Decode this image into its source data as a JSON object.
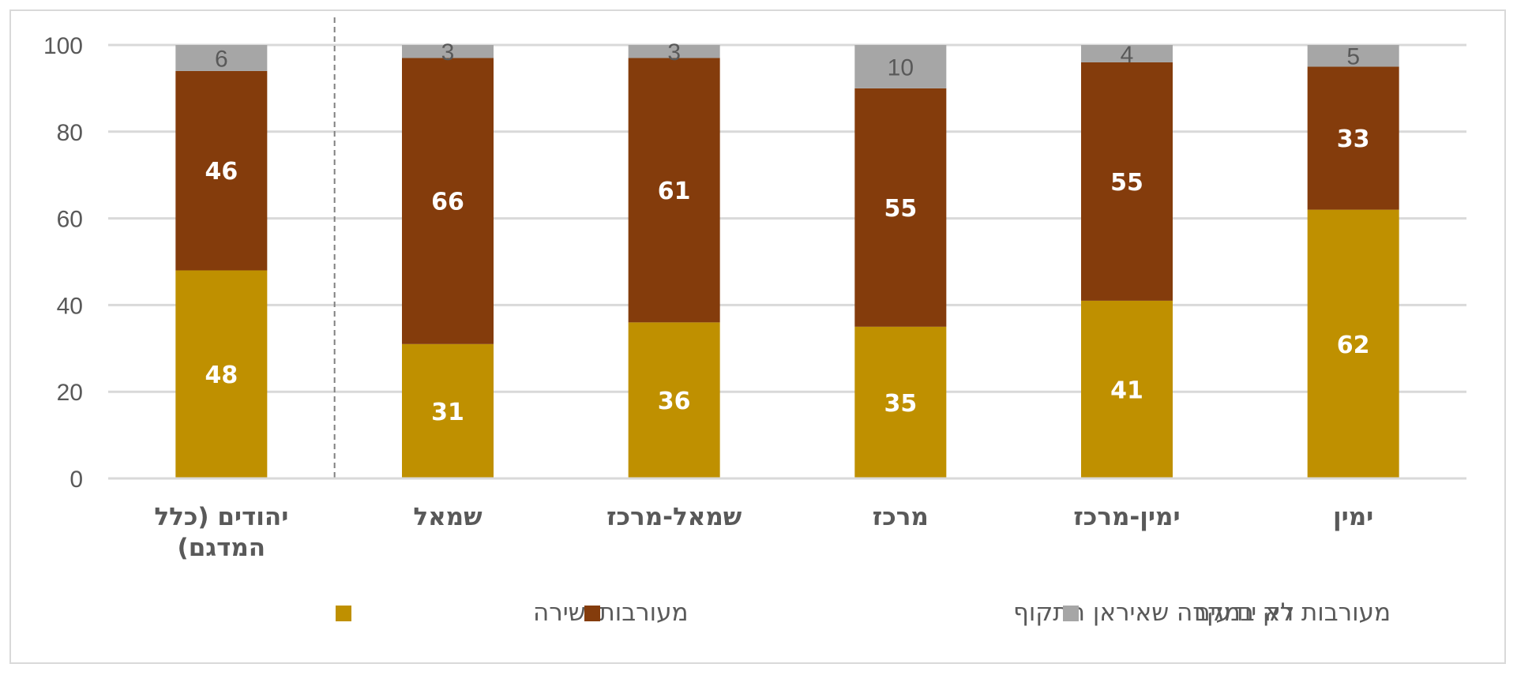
{
  "chart_data": {
    "type": "bar",
    "stacked": true,
    "categories": [
      "יהודים (כלל המדגם)",
      "שמאל",
      "שמאל-מרכז",
      "מרכז",
      "ימין-מרכז",
      "ימין"
    ],
    "category_lines": [
      [
        "יהודים (כלל",
        "המדגם)"
      ],
      [
        "שמאל"
      ],
      [
        "שמאל-מרכז"
      ],
      [
        "מרכז"
      ],
      [
        "ימין-מרכז"
      ],
      [
        "ימין"
      ]
    ],
    "series": [
      {
        "name": "מעורבות ישירה",
        "color": "#bf9000",
        "label_style": "white",
        "values": [
          48,
          31,
          36,
          35,
          41,
          62
        ]
      },
      {
        "name": "מעורבות רק במקרה שאיראן תתקוף",
        "color": "#843c0c",
        "label_style": "white",
        "values": [
          46,
          66,
          61,
          55,
          55,
          33
        ]
      },
      {
        "name": "לא יודעים",
        "color": "#a6a6a6",
        "label_style": "grey",
        "values": [
          6,
          3,
          3,
          10,
          4,
          5
        ]
      }
    ],
    "ylim": [
      0,
      100
    ],
    "yticks": [
      0,
      20,
      40,
      60,
      80,
      100
    ],
    "grid": true,
    "separator_after_category": 0,
    "legend_position": "bottom",
    "legend_order": [
      2,
      1,
      0
    ],
    "title": "",
    "xlabel": "",
    "ylabel": ""
  }
}
